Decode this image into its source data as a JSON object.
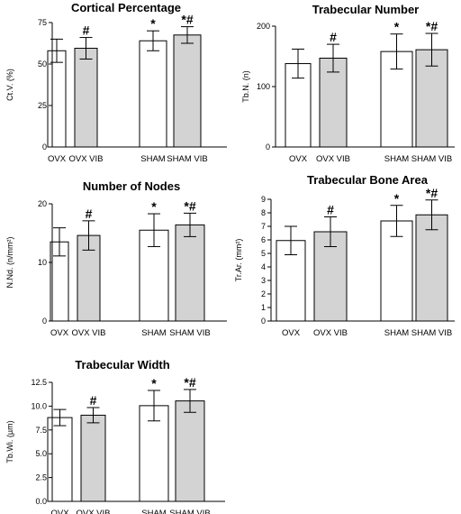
{
  "colors": {
    "ovx_bar": "#ffffff",
    "vib_bar": "#d3d3d3",
    "axis": "#000000"
  },
  "chart_data": [
    {
      "type": "bar",
      "title": "Cortical Percentage",
      "ylabel": "Ct.V. (%)",
      "ylim": [
        0,
        75
      ],
      "yticks": [
        "0",
        "25",
        "50",
        "75"
      ],
      "categories": [
        "OVX",
        "OVX VIB",
        "SHAM",
        "SHAM VIB"
      ],
      "values": [
        58,
        59.5,
        64,
        67.5
      ],
      "errors": [
        7,
        6.5,
        6,
        5
      ],
      "annotations": [
        "",
        "#",
        "*",
        "*#"
      ]
    },
    {
      "type": "bar",
      "title": "Trabecular Number",
      "ylabel": "Tb.N. (n)",
      "ylim": [
        0,
        200
      ],
      "yticks": [
        "0",
        "100",
        "200"
      ],
      "categories": [
        "OVX",
        "OVX VIB",
        "SHAM",
        "SHAM VIB"
      ],
      "values": [
        138,
        147,
        158,
        161
      ],
      "errors": [
        24,
        23,
        29,
        27
      ],
      "annotations": [
        "",
        "#",
        "*",
        "*#"
      ]
    },
    {
      "type": "bar",
      "title": "Number of Nodes",
      "ylabel": "N.Nd. (n/mm²)",
      "ylim": [
        0,
        20
      ],
      "yticks": [
        "0",
        "10",
        "20"
      ],
      "categories": [
        "OVX",
        "OVX VIB",
        "SHAM",
        "SHAM VIB"
      ],
      "values": [
        13.5,
        14.6,
        15.5,
        16.4
      ],
      "errors": [
        2.4,
        2.5,
        2.8,
        2.0
      ],
      "annotations": [
        "",
        "#",
        "*",
        "*#"
      ]
    },
    {
      "type": "bar",
      "title": "Trabecular Bone Area",
      "ylabel": "Tr.Ar. (mm²)",
      "ylim": [
        0,
        9
      ],
      "yticks": [
        "0",
        "1",
        "2",
        "3",
        "4",
        "5",
        "6",
        "7",
        "8",
        "9"
      ],
      "categories": [
        "OVX",
        "OVX VIB",
        "SHAM",
        "SHAM VIB"
      ],
      "values": [
        5.95,
        6.6,
        7.4,
        7.85
      ],
      "errors": [
        1.05,
        1.1,
        1.15,
        1.1
      ],
      "annotations": [
        "",
        "#",
        "*",
        "*#"
      ]
    },
    {
      "type": "bar",
      "title": "Trabecular Width",
      "ylabel": "Tb.Wi. (µm)",
      "ylim": [
        0,
        12.5
      ],
      "yticks": [
        "0.0",
        "2.5",
        "5.0",
        "7.5",
        "10.0",
        "12.5"
      ],
      "categories": [
        "OVX",
        "OVX VIB",
        "SHAM",
        "SHAM VIB"
      ],
      "values": [
        8.8,
        9.05,
        10.05,
        10.55
      ],
      "errors": [
        0.85,
        0.8,
        1.6,
        1.2
      ],
      "annotations": [
        "",
        "#",
        "*",
        "*#"
      ]
    }
  ]
}
